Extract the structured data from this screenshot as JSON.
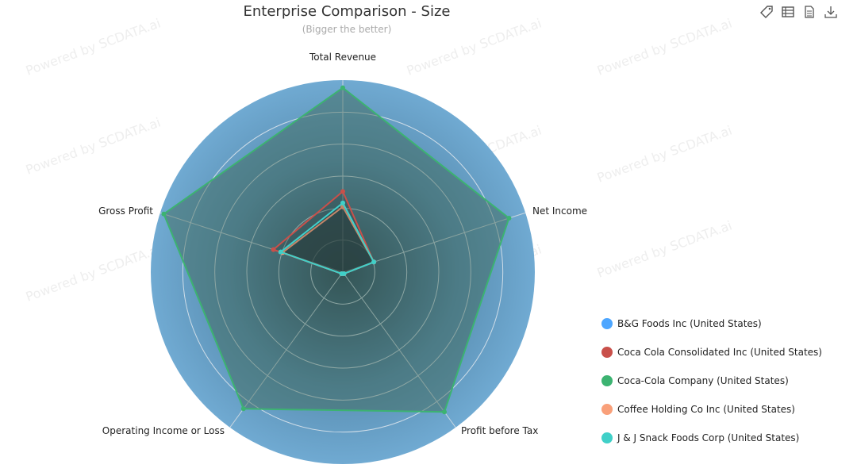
{
  "chart_data": {
    "type": "radar",
    "title": "Enterprise Comparison - Size",
    "subtitle": "(Bigger the better)",
    "indicators": [
      "Total Revenue",
      "Net Income",
      "Profit before Tax",
      "Operating Income or Loss",
      "Gross Profit"
    ],
    "range": [
      0,
      100
    ],
    "legend_position": "bottom-right",
    "series": [
      {
        "name": "B&G Foods Inc (United States)",
        "color": "#4da6ff",
        "values": [
          36,
          17,
          1,
          1,
          34
        ]
      },
      {
        "name": "Coca Cola Consolidated Inc (United States)",
        "color": "#c9504a",
        "values": [
          42,
          17,
          1,
          1,
          38
        ]
      },
      {
        "name": "Coca-Cola Company (United States)",
        "color": "#3cb371",
        "values": [
          96,
          91,
          90,
          88,
          98
        ]
      },
      {
        "name": "Coffee Holding Co Inc (United States)",
        "color": "#f9a07a",
        "values": [
          34,
          17,
          1,
          1,
          33
        ]
      },
      {
        "name": "J & J Snack Foods Corp (United States)",
        "color": "#40d0c8",
        "values": [
          36,
          17,
          1,
          1,
          34
        ]
      }
    ]
  },
  "toolbar": {
    "icons": [
      "tag-icon",
      "data-view-icon",
      "document-icon",
      "download-icon"
    ]
  },
  "watermark": "Powered by SCDATA.ai"
}
